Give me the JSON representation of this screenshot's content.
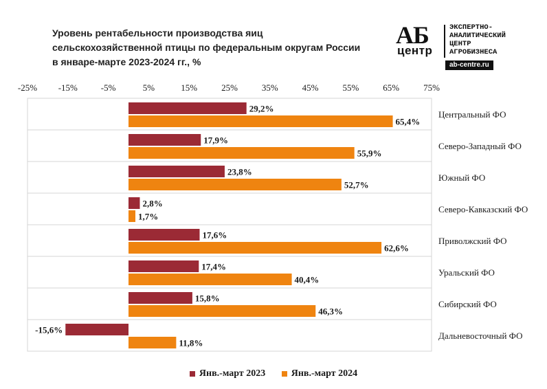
{
  "title_lines": [
    "Уровень рентабельности производства яиц",
    "сельскохозяйственной птицы по федеральным округам России",
    "в январе-марте  2023-2024 гг., %"
  ],
  "logo": {
    "ab": "АБ",
    "center": "центр",
    "tagline": [
      "ЭКСПЕРТНО-",
      "АНАЛИТИЧЕСКИЙ",
      "ЦЕНТР",
      "АГРОБИЗНЕСА"
    ],
    "site": "ab-centre.ru"
  },
  "colors": {
    "s2023": "#9b2a35",
    "s2024": "#ef8410"
  },
  "chart_data": {
    "type": "bar",
    "orientation": "horizontal",
    "categories": [
      "Центральный ФО",
      "Северо-Западный ФО",
      "Южный ФО",
      "Северо-Кавказский ФО",
      "Приволжский ФО",
      "Уральский ФО",
      "Сибирский ФО",
      "Дальневосточный ФО"
    ],
    "series": [
      {
        "name": "Янв.-март 2023",
        "values": [
          29.2,
          17.9,
          23.8,
          2.8,
          17.6,
          17.4,
          15.8,
          -15.6
        ],
        "labels": [
          "29,2%",
          "17,9%",
          "23,8%",
          "2,8%",
          "17,6%",
          "17,4%",
          "15,8%",
          "-15,6%"
        ]
      },
      {
        "name": "Янв.-март 2024",
        "values": [
          65.4,
          55.9,
          52.7,
          1.7,
          62.6,
          40.4,
          46.3,
          11.8
        ],
        "labels": [
          "65,4%",
          "55,9%",
          "52,7%",
          "1,7%",
          "62,6%",
          "40,4%",
          "46,3%",
          "11,8%"
        ]
      }
    ],
    "xlim": [
      -25,
      75
    ],
    "ticks": [
      -25,
      -15,
      -5,
      5,
      15,
      25,
      35,
      45,
      55,
      65,
      75
    ],
    "tick_labels": [
      "-25%",
      "-15%",
      "-5%",
      "5%",
      "15%",
      "25%",
      "35%",
      "45%",
      "55%",
      "65%",
      "75%"
    ],
    "axis_position": "top",
    "legend_position": "bottom",
    "grid": false
  }
}
